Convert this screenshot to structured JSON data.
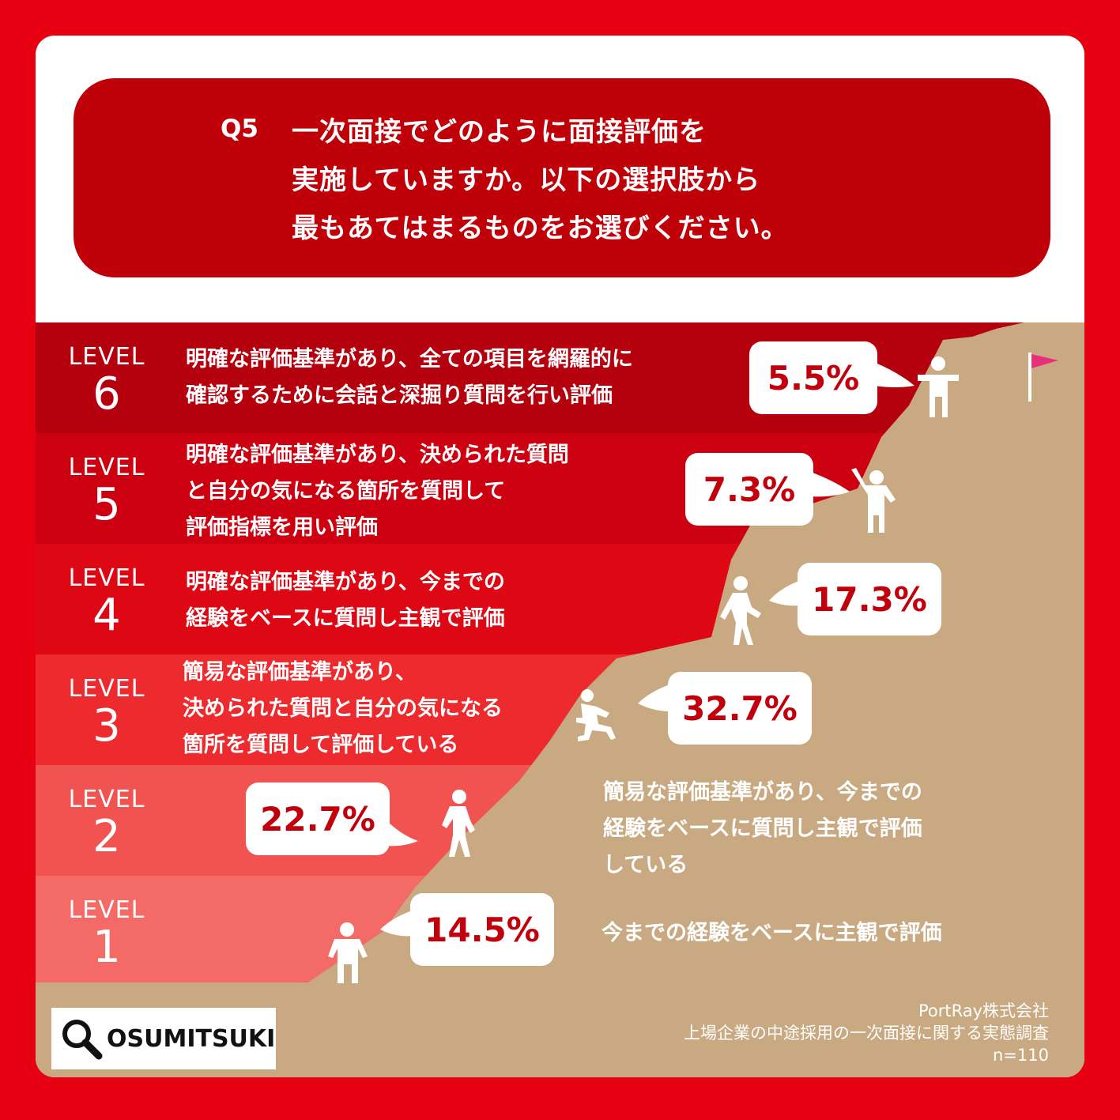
{
  "question": {
    "number": "Q5",
    "lines": [
      "一次面接でどのように面接評価を",
      "実施していますか。以下の選択肢から",
      "最もあてはまるものをお選びください。"
    ]
  },
  "level_word": "LEVEL",
  "chart_data": {
    "type": "bar",
    "unit": "%",
    "n": "n=110",
    "categories": [
      "6",
      "5",
      "4",
      "3",
      "2",
      "1"
    ],
    "descriptions": [
      [
        "明確な評価基準があり、全ての項目を網羅的に",
        "確認するために会話と深掘り質問を行い評価"
      ],
      [
        "明確な評価基準があり、決められた質問",
        "と自分の気になる箇所を質問して",
        "評価指標を用い評価"
      ],
      [
        "明確な評価基準があり、今までの",
        "経験をベースに質問し主観で評価"
      ],
      [
        "簡易な評価基準があり、",
        "決められた質問と自分の気になる",
        "箇所を質問して評価している"
      ],
      [
        "簡易な評価基準があり、今までの",
        "経験をベースに質問し主観で評価",
        "している"
      ],
      [
        "今までの経験をベースに主観で評価"
      ]
    ],
    "values": [
      5.5,
      7.3,
      17.3,
      32.7,
      22.7,
      14.5
    ],
    "labels": [
      "5.5%",
      "7.3%",
      "17.3%",
      "32.7%",
      "22.7%",
      "14.5%"
    ],
    "colors": {
      "band": [
        "#b5000e",
        "#cc0010",
        "#de0814",
        "#ed2a2d",
        "#f15351",
        "#f46a66"
      ],
      "mountain": "#c9a981",
      "frame": "#e60012",
      "question_bg": "#bf0009",
      "value_text": "#c1000b"
    }
  },
  "logo": "OSUMITSUKI",
  "source": {
    "company": "PortRay株式会社",
    "survey": "上場企業の中途採用の一次面接に関する実態調査",
    "n": "n=110"
  },
  "icons": [
    "flag-icon",
    "person-icon",
    "magnifier-icon"
  ]
}
